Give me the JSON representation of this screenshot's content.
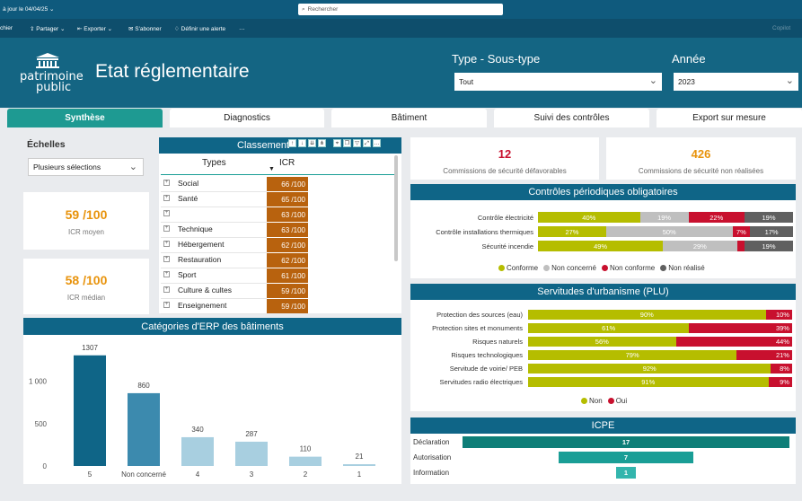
{
  "topbar": {
    "updated": "à jour le 04/04/25",
    "search_placeholder": "Rechercher"
  },
  "toolbar": {
    "items": [
      "chier",
      "Partager",
      "Exporter",
      "S'abonner",
      "Définir une alerte",
      "…"
    ],
    "copilot": "Copilot"
  },
  "banner": {
    "logo_line1": "patrimoine",
    "logo_line2": "public",
    "title": "Etat réglementaire",
    "filter1_label": "Type - Sous-type",
    "filter1_value": "Tout",
    "filter2_label": "Année",
    "filter2_value": "2023"
  },
  "tabs": [
    "Synthèse",
    "Diagnostics",
    "Bâtiment",
    "Suivi des contrôles",
    "Export sur mesure"
  ],
  "echelles": {
    "title": "Échelles",
    "select_value": "Plusieurs sélections"
  },
  "kpi": {
    "icr_moyen_value": "59 /100",
    "icr_moyen_label": "ICR moyen",
    "icr_median_value": "58 /100",
    "icr_median_label": "ICR médian",
    "commissions_def_value": "12",
    "commissions_def_label": "Commissions de sécurité défavorables",
    "commissions_nr_value": "426",
    "commissions_nr_label": "Commissions de sécurité non réalisées"
  },
  "classement": {
    "title": "Classement",
    "col_types": "Types",
    "col_icr": "ICR",
    "rows": [
      {
        "type": "Social",
        "icr": "66 /100"
      },
      {
        "type": "Santé",
        "icr": "65 /100"
      },
      {
        "type": "",
        "icr": "63 /100"
      },
      {
        "type": "Technique",
        "icr": "63 /100"
      },
      {
        "type": "Hébergement",
        "icr": "62 /100"
      },
      {
        "type": "Restauration",
        "icr": "62 /100"
      },
      {
        "type": "Sport",
        "icr": "61 /100"
      },
      {
        "type": "Culture & cultes",
        "icr": "59 /100"
      },
      {
        "type": "Enseignement",
        "icr": "59 /100"
      }
    ]
  },
  "colors": {
    "conforme": "#b5bd00",
    "non_concerne": "#bfbfbf",
    "non_conforme": "#c8102e",
    "non_realise": "#606060",
    "non": "#b5bd00",
    "oui": "#c8102e",
    "icr_cell": "#b8620e",
    "teal_dark": "#0e7e78",
    "teal_mid": "#1a9e96",
    "teal_light": "#33b5ad"
  },
  "controles": {
    "title": "Contrôles périodiques obligatoires",
    "rows": [
      {
        "label": "Contrôle électricité",
        "segs": [
          40,
          19,
          22,
          19
        ],
        "texts": [
          "40%",
          "19%",
          "22%",
          "19%"
        ]
      },
      {
        "label": "Contrôle installations thermiques",
        "segs": [
          27,
          50,
          7,
          17
        ],
        "texts": [
          "27%",
          "50%",
          "7%",
          "17%"
        ]
      },
      {
        "label": "Sécurité incendie",
        "segs": [
          49,
          29,
          3,
          19
        ],
        "texts": [
          "49%",
          "29%",
          "",
          "19%"
        ]
      }
    ],
    "legend": [
      "Conforme",
      "Non concerné",
      "Non conforme",
      "Non réalisé"
    ]
  },
  "servitudes": {
    "title": "Servitudes d'urbanisme (PLU)",
    "rows": [
      {
        "label": "Protection des sources (eau)",
        "non": 90,
        "oui": 10,
        "non_text": "90%",
        "oui_text": "10%"
      },
      {
        "label": "Protection sites et monuments",
        "non": 61,
        "oui": 39,
        "non_text": "61%",
        "oui_text": "39%"
      },
      {
        "label": "Risques naturels",
        "non": 56,
        "oui": 44,
        "non_text": "56%",
        "oui_text": "44%"
      },
      {
        "label": "Risques technologiques",
        "non": 79,
        "oui": 21,
        "non_text": "79%",
        "oui_text": "21%"
      },
      {
        "label": "Servitude de voirie/ PEB",
        "non": 92,
        "oui": 8,
        "non_text": "92%",
        "oui_text": "8%"
      },
      {
        "label": "Servitudes radio électriques",
        "non": 91,
        "oui": 9,
        "non_text": "91%",
        "oui_text": "9%"
      }
    ],
    "legend": [
      "Non",
      "Oui"
    ]
  },
  "icpe": {
    "title": "ICPE",
    "rows": [
      {
        "label": "Déclaration",
        "value": 17
      },
      {
        "label": "Autorisation",
        "value": 7
      },
      {
        "label": "Information",
        "value": 1
      }
    ]
  },
  "chart_data": {
    "type": "bar",
    "title": "Catégories d'ERP des bâtiments",
    "categories": [
      "5",
      "Non concerné",
      "4",
      "3",
      "2",
      "1"
    ],
    "values": [
      1307,
      860,
      340,
      287,
      110,
      21
    ],
    "yticks": [
      "1 000",
      "500",
      "0"
    ],
    "ytick_values": [
      1000,
      500,
      0
    ],
    "ylim": [
      0,
      1400
    ],
    "bar_colors": [
      "#0f6587",
      "#3c8aae",
      "#a8cfe0",
      "#a8cfe0",
      "#a8cfe0",
      "#a8cfe0"
    ]
  }
}
